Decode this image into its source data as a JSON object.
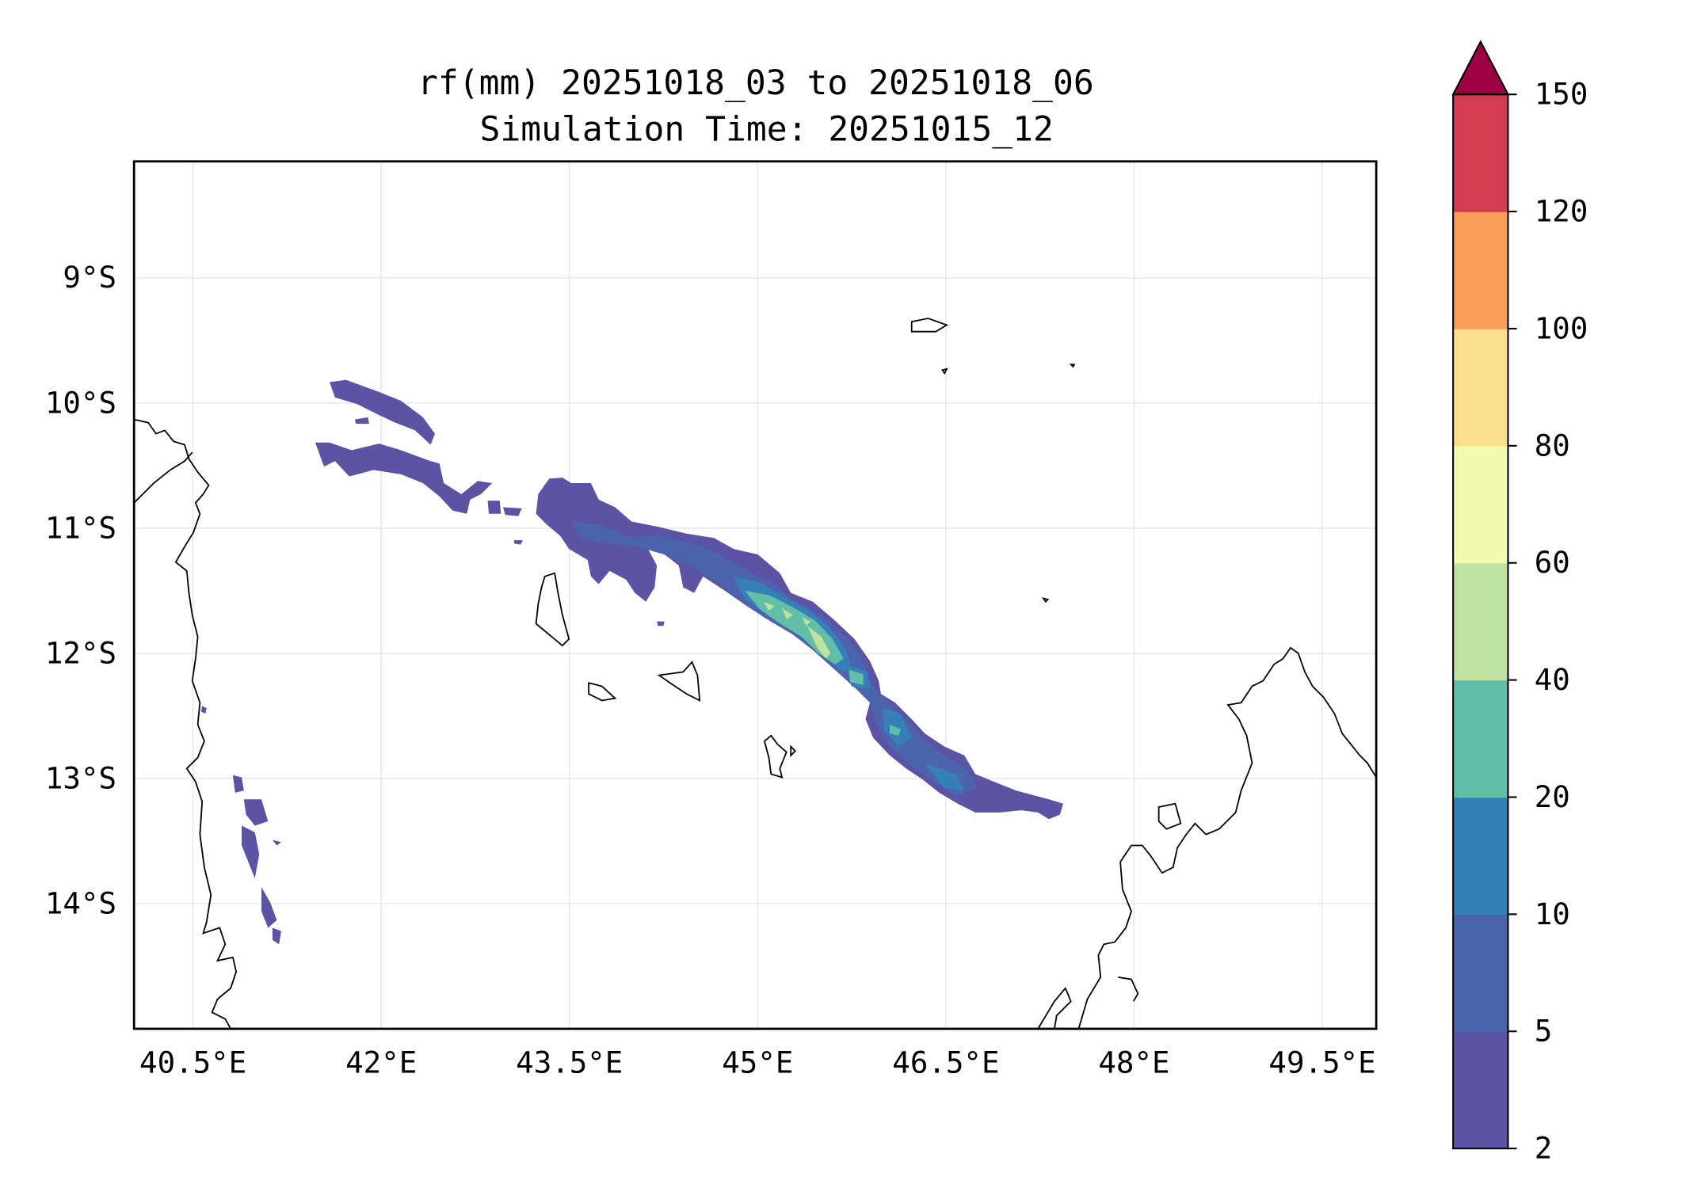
{
  "chart_data": {
    "type": "contourf-map",
    "title_line1": "rf(mm) 20251018_03 to 20251018_06",
    "title_line2": "Simulation Time: 20251015_12",
    "x_ticks": [
      40.5,
      42,
      43.5,
      45,
      46.5,
      48,
      49.5
    ],
    "x_tick_labels": [
      "40.5°E",
      "42°E",
      "43.5°E",
      "45°E",
      "46.5°E",
      "48°E",
      "49.5°E"
    ],
    "y_ticks": [
      9,
      10,
      11,
      12,
      13,
      14
    ],
    "y_tick_labels": [
      "9°S",
      "10°S",
      "11°S",
      "12°S",
      "13°S",
      "14°S"
    ],
    "lon_range": [
      40.03,
      49.93
    ],
    "lat_range_south": [
      8.07,
      15.0
    ],
    "grid": true,
    "colorbar": {
      "levels": [
        2,
        5,
        10,
        20,
        40,
        60,
        80,
        100,
        120,
        150
      ],
      "labels": [
        "2",
        "5",
        "10",
        "20",
        "40",
        "60",
        "80",
        "100",
        "120",
        "150"
      ],
      "colors": [
        "#5b53a4",
        "#4c64ad",
        "#3680b9",
        "#62bea6",
        "#bce39f",
        "#f3faad",
        "#fbde8d",
        "#f99c58",
        "#d43d51"
      ],
      "extend_max_color": "#9e0142",
      "position": "right"
    }
  }
}
